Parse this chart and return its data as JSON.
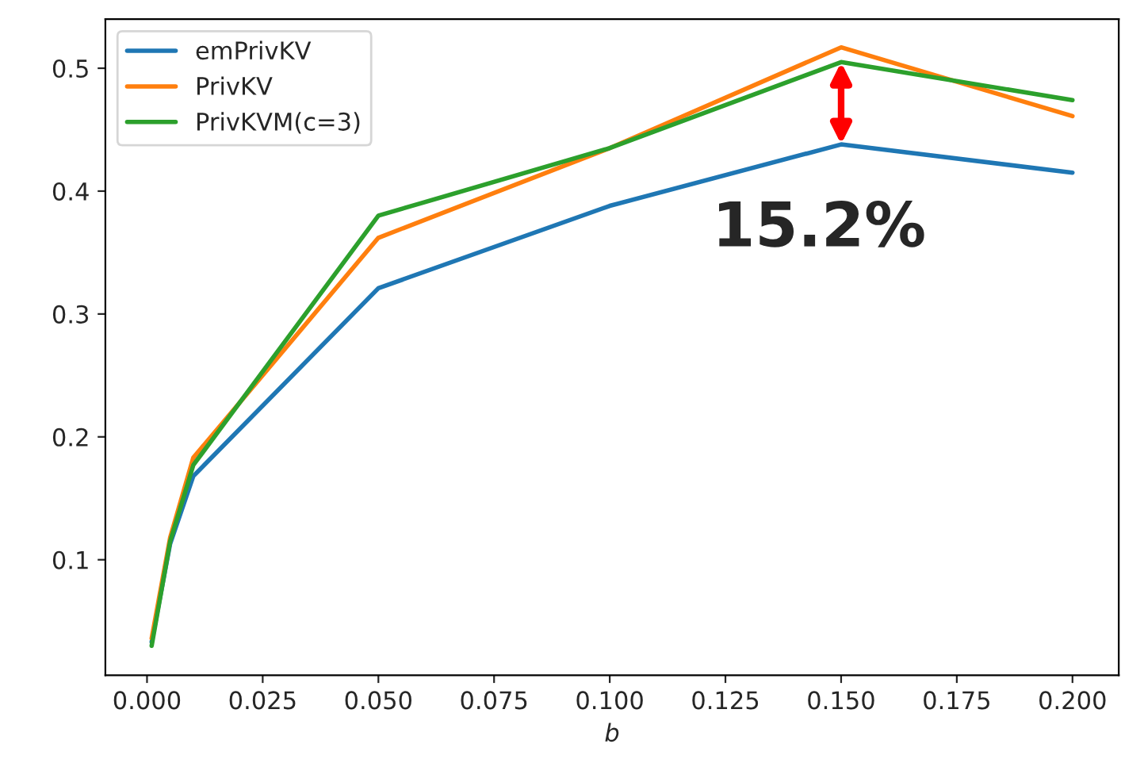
{
  "chart_data": {
    "type": "line",
    "xlabel": "b",
    "x": [
      0.001,
      0.005,
      0.01,
      0.05,
      0.1,
      0.15,
      0.2
    ],
    "series": [
      {
        "name": "emPrivKV",
        "color": "#1f77b4",
        "values": [
          0.033,
          0.113,
          0.168,
          0.321,
          0.388,
          0.438,
          0.415
        ]
      },
      {
        "name": "PrivKV",
        "color": "#ff7f0e",
        "values": [
          0.036,
          0.118,
          0.183,
          0.362,
          0.435,
          0.517,
          0.461
        ]
      },
      {
        "name": "PrivKVM(c=3)",
        "color": "#2ca02c",
        "values": [
          0.03,
          0.115,
          0.177,
          0.38,
          0.435,
          0.505,
          0.474
        ]
      }
    ],
    "xlim": [
      -0.009,
      0.21
    ],
    "ylim": [
      0.006,
      0.54
    ],
    "xticks": [
      {
        "value": 0,
        "label": "0.000"
      },
      {
        "value": 0.025,
        "label": "0.025"
      },
      {
        "value": 0.05,
        "label": "0.050"
      },
      {
        "value": 0.075,
        "label": "0.075"
      },
      {
        "value": 0.1,
        "label": "0.100"
      },
      {
        "value": 0.125,
        "label": "0.125"
      },
      {
        "value": 0.15,
        "label": "0.150"
      },
      {
        "value": 0.175,
        "label": "0.175"
      },
      {
        "value": 0.2,
        "label": "0.200"
      }
    ],
    "yticks": [
      0.1,
      0.2,
      0.3,
      0.4,
      0.5
    ],
    "annotations": [
      {
        "text": "15.2%",
        "x": 0.15,
        "y": 0.438
      }
    ],
    "legend": "top left",
    "grid": false,
    "marker": "none",
    "line_style": "solid"
  }
}
